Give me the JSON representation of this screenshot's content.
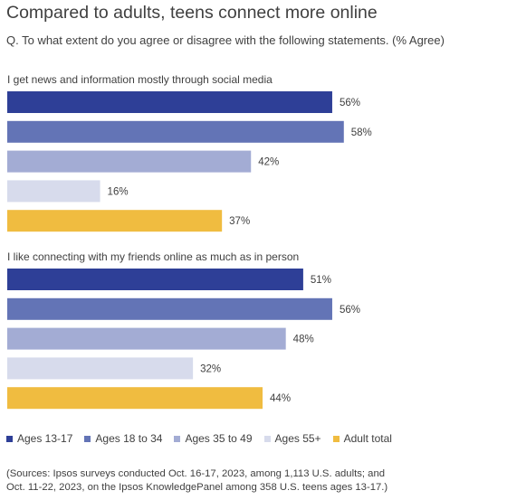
{
  "title": "Compared to adults, teens connect more online",
  "subtitle": "Q. To what extent do you agree or disagree with the following statements. (% Agree)",
  "colors": [
    "#2e3f97",
    "#6374b6",
    "#a3acd4",
    "#d7dbec",
    "#f0bc40"
  ],
  "chart_data": {
    "type": "bar",
    "orientation": "horizontal",
    "series_names": [
      "Ages 13-17",
      "Ages 18 to 34",
      "Ages 35 to 49",
      "Ages 55+",
      "Adult total"
    ],
    "groups": [
      {
        "label": "I get news and information mostly through social media",
        "values": [
          56,
          58,
          42,
          16,
          37
        ]
      },
      {
        "label": "I like connecting with my friends online as much as in person",
        "values": [
          51,
          56,
          48,
          32,
          44
        ]
      }
    ],
    "value_suffix": "%",
    "xlim": [
      0,
      100
    ],
    "legend_position": "bottom"
  },
  "source_lines": [
    "(Sources: Ipsos surveys conducted Oct. 16-17, 2023, among 1,113 U.S. adults; and",
    "Oct. 11-22, 2023, on the Ipsos KnowledgePanel among 358 U.S. teens ages 13-17.)"
  ]
}
